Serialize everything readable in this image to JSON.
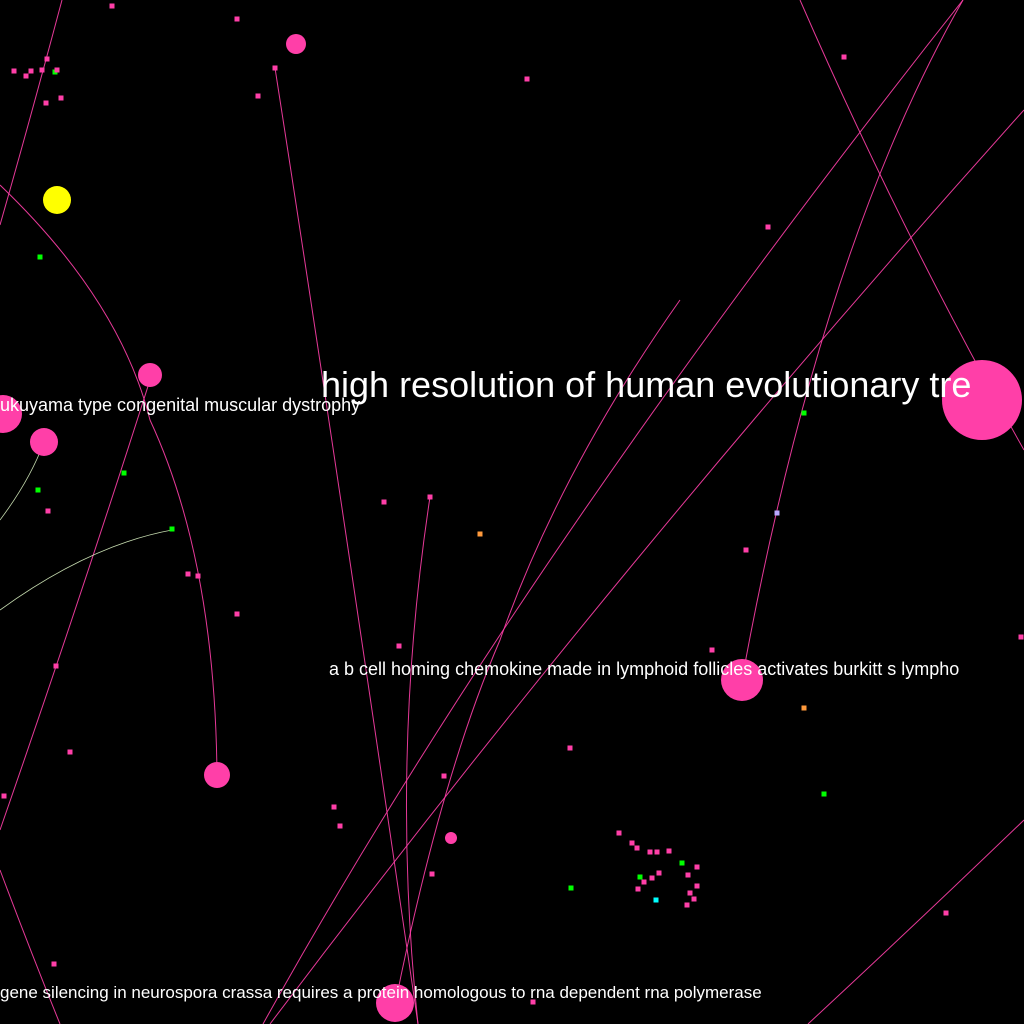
{
  "palette": {
    "background": "#000000",
    "edge_pink": "#ff3fa8",
    "edge_light": "#d8f0c0",
    "node_pink": "#ff3fa8",
    "node_yellow": "#ffff00",
    "node_green": "#00ff00",
    "node_orange": "#ff9a3c",
    "node_lavender": "#b8a8ff",
    "node_cyan": "#00ffff",
    "label": "#ffffff"
  },
  "labels": {
    "evolutionary": "high resolution of human evolutionary tre",
    "fukuyama": "ukuyama type congenital muscular dystrophy",
    "chemokine": "a b cell homing chemokine made in lymphoid follicles activates burkitt s lympho",
    "neurospora": "gene silencing in neurospora crassa requires a protein homologous to rna dependent rna polymerase"
  }
}
